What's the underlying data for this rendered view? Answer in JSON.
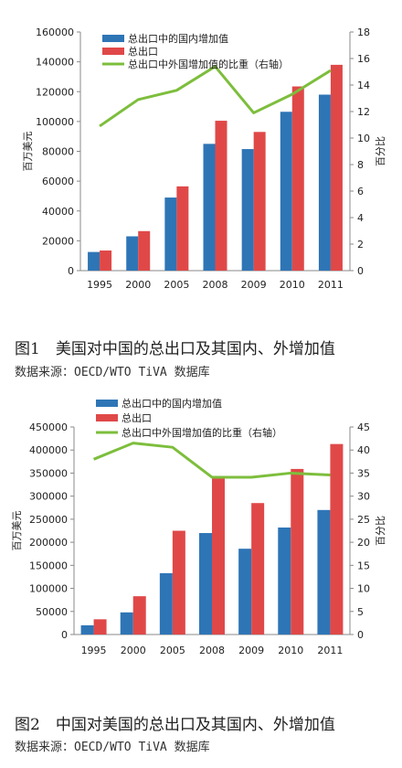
{
  "figures": [
    {
      "caption": "图1　美国对中国的总出口及其国内、外增加值",
      "source": "数据来源：OECD/WTO TiVA 数据库"
    },
    {
      "caption": "图2　中国对美国的总出口及其国内、外增加值",
      "source": "数据来源：OECD/WTO TiVA 数据库"
    }
  ],
  "colors": {
    "domestic": "#2E75B6",
    "total": "#E04848",
    "share": "#7DBE3C"
  },
  "chart_data": [
    {
      "type": "bar",
      "categories": [
        "1995",
        "2000",
        "2005",
        "2008",
        "2009",
        "2010",
        "2011"
      ],
      "series": [
        {
          "name": "总出口中的国内增加值",
          "kind": "bar",
          "axis": "left",
          "values": [
            12500,
            23000,
            49000,
            85000,
            81500,
            106500,
            118000
          ]
        },
        {
          "name": "总出口",
          "kind": "bar",
          "axis": "left",
          "values": [
            13500,
            26500,
            56500,
            100500,
            93000,
            123500,
            138000
          ]
        },
        {
          "name": "总出口中外国增加值的比重（右轴）",
          "kind": "line",
          "axis": "right",
          "values": [
            10.9,
            12.9,
            13.6,
            15.4,
            11.9,
            13.3,
            15.1
          ]
        }
      ],
      "ylabel": "百万美元",
      "ylabel_right": "百分比",
      "ylim": [
        0,
        160000
      ],
      "ylim_right": [
        0,
        18
      ],
      "yticks": [
        "0",
        "20000",
        "40000",
        "60000",
        "80000",
        "100000",
        "120000",
        "140000",
        "160000"
      ],
      "yticks_right": [
        "0",
        "2",
        "4",
        "6",
        "8",
        "10",
        "12",
        "14",
        "16",
        "18"
      ],
      "legend_position": "top-left",
      "grid": false
    },
    {
      "type": "bar",
      "categories": [
        "1995",
        "2000",
        "2005",
        "2008",
        "2009",
        "2010",
        "2011"
      ],
      "series": [
        {
          "name": "总出口中的国内增加值",
          "kind": "bar",
          "axis": "left",
          "values": [
            20000,
            48000,
            133000,
            220000,
            186000,
            232000,
            270000
          ]
        },
        {
          "name": "总出口",
          "kind": "bar",
          "axis": "left",
          "values": [
            33000,
            83000,
            225000,
            338000,
            285000,
            359000,
            413000
          ]
        },
        {
          "name": "总出口中外国增加值的比重（右轴）",
          "kind": "line",
          "axis": "right",
          "values": [
            38.0,
            41.5,
            40.6,
            34.1,
            34.1,
            35.0,
            34.6
          ]
        }
      ],
      "ylabel": "百万美元",
      "ylabel_right": "百分比",
      "ylim": [
        0,
        450000
      ],
      "ylim_right": [
        0,
        45
      ],
      "yticks": [
        "0",
        "50000",
        "100000",
        "150000",
        "200000",
        "250000",
        "300000",
        "350000",
        "400000",
        "450000"
      ],
      "yticks_right": [
        "0",
        "5",
        "10",
        "15",
        "20",
        "25",
        "30",
        "35",
        "40",
        "45"
      ],
      "legend_position": "top-left",
      "grid": false
    }
  ]
}
